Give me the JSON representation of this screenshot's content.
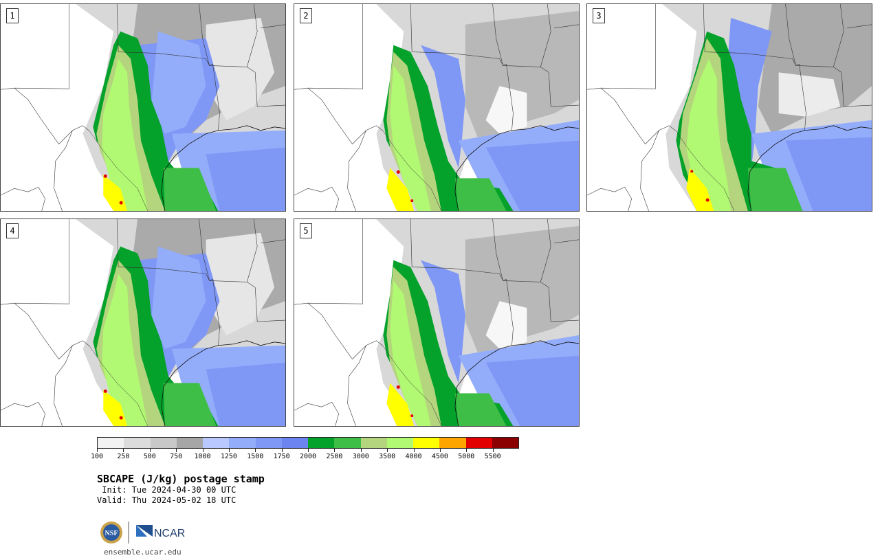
{
  "title": "SBCAPE (J/kg) postage stamp",
  "init": " Init: Tue 2024-04-30 00 UTC",
  "valid": "Valid: Thu 2024-05-02 18 UTC",
  "url": "ensemble.ucar.edu",
  "logos": {
    "nsf": "NSF",
    "ncar": "NCAR"
  },
  "panels": [
    {
      "label": "1"
    },
    {
      "label": "2"
    },
    {
      "label": "3"
    },
    {
      "label": "4"
    },
    {
      "label": "5"
    }
  ],
  "colorbar": {
    "colors": [
      "#f2f2f2",
      "#dcdcdc",
      "#c8c8c8",
      "#a6a6a6",
      "#b9c8ff",
      "#93adfb",
      "#7f97f5",
      "#6b84f0",
      "#04a12b",
      "#3ebe47",
      "#b4d47d",
      "#b1f873",
      "#ffff00",
      "#ffa500",
      "#e30000",
      "#8b0000"
    ],
    "ticks": [
      "100",
      "250",
      "500",
      "750",
      "1000",
      "1250",
      "1500",
      "1750",
      "2000",
      "2500",
      "3000",
      "3500",
      "4000",
      "4500",
      "5000",
      "5500"
    ]
  }
}
